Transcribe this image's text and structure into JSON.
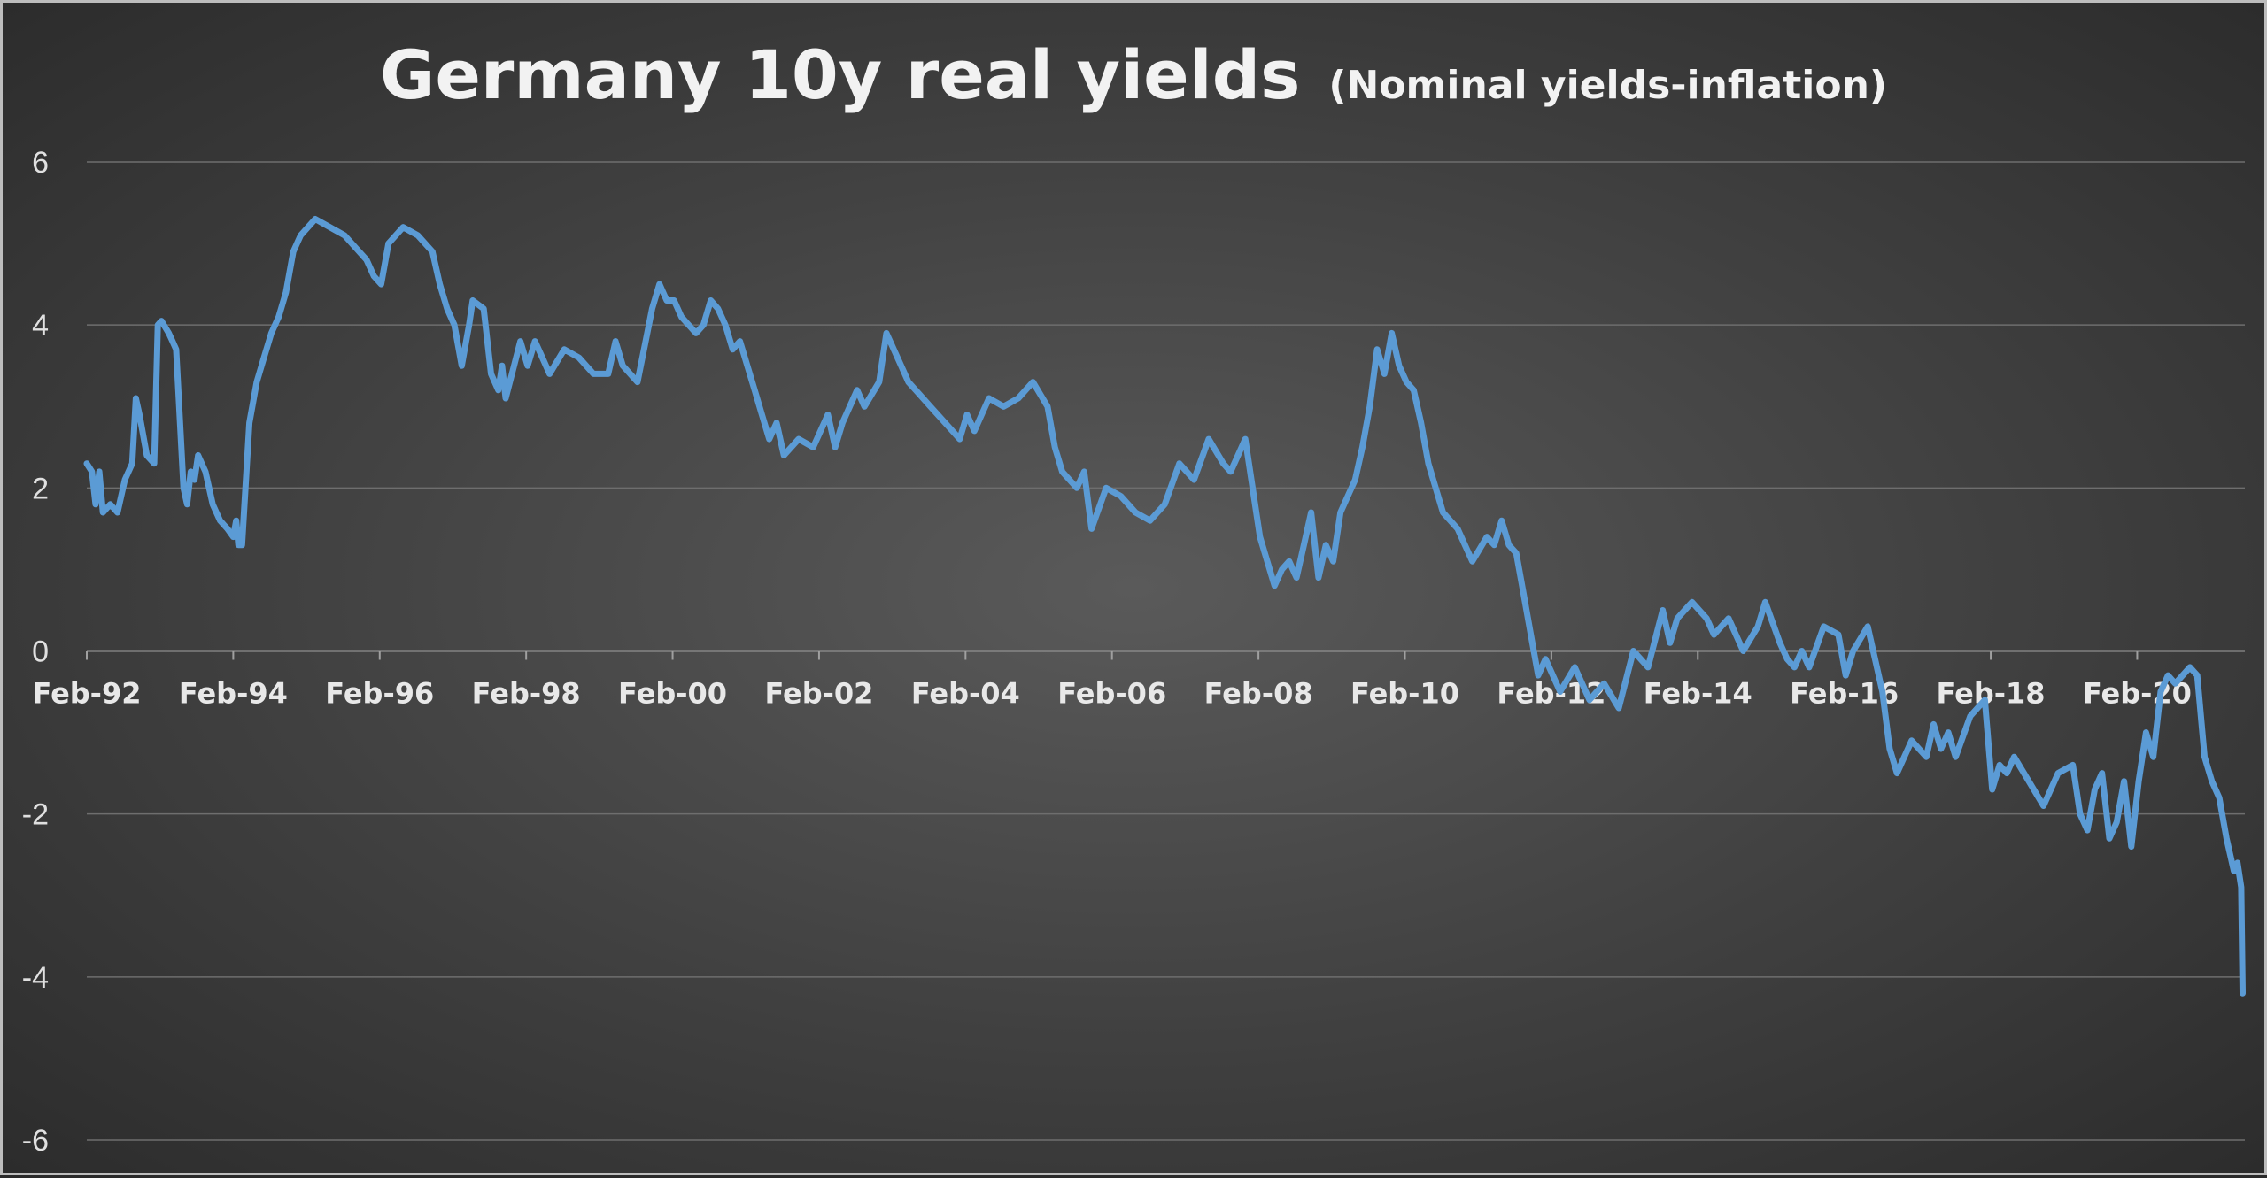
{
  "chart_data": {
    "type": "line",
    "title": "Germany 10y real yields",
    "subtitle": "(Nominal yields-inflation)",
    "xlabel": "",
    "ylabel": "",
    "xlim": [
      1992.08,
      2021.55
    ],
    "ylim": [
      -6,
      6
    ],
    "yticks": [
      6,
      4,
      2,
      0,
      -2,
      -4,
      -6
    ],
    "yticklabels": [
      "6",
      "4",
      "2",
      "0",
      "-2",
      "-4",
      "-6"
    ],
    "xticks": [
      1992.08,
      1994.08,
      1996.08,
      1998.08,
      2000.08,
      2002.08,
      2004.08,
      2006.08,
      2008.08,
      2010.08,
      2012.08,
      2014.08,
      2016.08,
      2018.08,
      2020.08
    ],
    "xticklabels": [
      "Feb-92",
      "Feb-94",
      "Feb-96",
      "Feb-98",
      "Feb-00",
      "Feb-02",
      "Feb-04",
      "Feb-06",
      "Feb-08",
      "Feb-10",
      "Feb-12",
      "Feb-14",
      "Feb-16",
      "Feb-18",
      "Feb-20"
    ],
    "grid": true,
    "legend": "none",
    "series_color": "#5b9bd5",
    "series": [
      {
        "x": [
          1992.08,
          1992.15,
          1992.2,
          1992.25,
          1992.3,
          1992.4,
          1992.5,
          1992.6,
          1992.7,
          1992.75,
          1992.8,
          1992.9,
          1993.0,
          1993.05,
          1993.1,
          1993.2,
          1993.25,
          1993.3,
          1993.4,
          1993.45,
          1993.5,
          1993.55,
          1993.6,
          1993.7,
          1993.8,
          1993.9,
          1994.0,
          1994.08,
          1994.12,
          1994.15,
          1994.2,
          1994.3,
          1994.4,
          1994.5,
          1994.6,
          1994.7,
          1994.8,
          1994.9,
          1995.0,
          1995.2,
          1995.4,
          1995.6,
          1995.8,
          1995.9,
          1996.0,
          1996.1,
          1996.2,
          1996.4,
          1996.6,
          1996.8,
          1996.9,
          1997.0,
          1997.1,
          1997.2,
          1997.3,
          1997.35,
          1997.5,
          1997.6,
          1997.7,
          1997.75,
          1997.8,
          1998.0,
          1998.1,
          1998.2,
          1998.3,
          1998.4,
          1998.6,
          1998.8,
          1999.0,
          1999.2,
          1999.3,
          1999.4,
          1999.6,
          1999.8,
          1999.9,
          2000.0,
          2000.1,
          2000.2,
          2000.3,
          2000.4,
          2000.5,
          2000.6,
          2000.7,
          2000.8,
          2000.9,
          2001.0,
          2001.2,
          2001.3,
          2001.4,
          2001.5,
          2001.6,
          2001.8,
          2002.0,
          2002.2,
          2002.3,
          2002.4,
          2002.6,
          2002.7,
          2002.9,
          2003.0,
          2003.2,
          2003.3,
          2003.4,
          2003.6,
          2003.8,
          2004.0,
          2004.1,
          2004.2,
          2004.3,
          2004.4,
          2004.6,
          2004.8,
          2004.9,
          2005.0,
          2005.2,
          2005.3,
          2005.4,
          2005.6,
          2005.7,
          2005.8,
          2006.0,
          2006.2,
          2006.4,
          2006.6,
          2006.8,
          2007.0,
          2007.2,
          2007.4,
          2007.6,
          2007.7,
          2007.8,
          2007.9,
          2008.0,
          2008.1,
          2008.3,
          2008.4,
          2008.5,
          2008.6,
          2008.7,
          2008.8,
          2008.9,
          2009.0,
          2009.1,
          2009.2,
          2009.3,
          2009.4,
          2009.5,
          2009.6,
          2009.7,
          2009.8,
          2009.9,
          2010.0,
          2010.1,
          2010.2,
          2010.3,
          2010.4,
          2010.6,
          2010.8,
          2011.0,
          2011.2,
          2011.3,
          2011.4,
          2011.5,
          2011.6,
          2011.7,
          2011.8,
          2011.9,
          2012.0,
          2012.2,
          2012.4,
          2012.6,
          2012.8,
          2013.0,
          2013.2,
          2013.4,
          2013.6,
          2013.7,
          2013.8,
          2014.0,
          2014.2,
          2014.3,
          2014.5,
          2014.7,
          2014.9,
          2015.0,
          2015.2,
          2015.3,
          2015.4,
          2015.5,
          2015.6,
          2015.8,
          2016.0,
          2016.1,
          2016.2,
          2016.4,
          2016.6,
          2016.7,
          2016.8,
          2017.0,
          2017.2,
          2017.3,
          2017.4,
          2017.5,
          2017.6,
          2017.8,
          2018.0,
          2018.1,
          2018.2,
          2018.3,
          2018.4,
          2018.6,
          2018.8,
          2019.0,
          2019.2,
          2019.3,
          2019.4,
          2019.5,
          2019.6,
          2019.7,
          2019.8,
          2019.9,
          2020.0,
          2020.1,
          2020.2,
          2020.3,
          2020.4,
          2020.5,
          2020.6,
          2020.7,
          2020.8,
          2020.9,
          2021.0,
          2021.1,
          2021.2,
          2021.3,
          2021.4,
          2021.45,
          2021.5,
          2021.52
        ],
        "y": [
          2.3,
          2.2,
          1.8,
          2.2,
          1.7,
          1.8,
          1.7,
          2.1,
          2.3,
          3.1,
          2.9,
          2.4,
          2.3,
          4.0,
          4.05,
          3.9,
          3.8,
          3.7,
          2.0,
          1.8,
          2.2,
          2.1,
          2.4,
          2.2,
          1.8,
          1.6,
          1.5,
          1.4,
          1.6,
          1.3,
          1.3,
          2.8,
          3.3,
          3.6,
          3.9,
          4.1,
          4.4,
          4.9,
          5.1,
          5.3,
          5.2,
          5.1,
          4.9,
          4.8,
          4.6,
          4.5,
          5.0,
          5.2,
          5.1,
          4.9,
          4.5,
          4.2,
          4.0,
          3.5,
          4.0,
          4.3,
          4.2,
          3.4,
          3.2,
          3.5,
          3.1,
          3.8,
          3.5,
          3.8,
          3.6,
          3.4,
          3.7,
          3.6,
          3.4,
          3.4,
          3.8,
          3.5,
          3.3,
          4.2,
          4.5,
          4.3,
          4.3,
          4.1,
          4.0,
          3.9,
          4.0,
          4.3,
          4.2,
          4.0,
          3.7,
          3.8,
          3.2,
          2.9,
          2.6,
          2.8,
          2.4,
          2.6,
          2.5,
          2.9,
          2.5,
          2.8,
          3.2,
          3.0,
          3.3,
          3.9,
          3.5,
          3.3,
          3.2,
          3.0,
          2.8,
          2.6,
          2.9,
          2.7,
          2.9,
          3.1,
          3.0,
          3.1,
          3.2,
          3.3,
          3.0,
          2.5,
          2.2,
          2.0,
          2.2,
          1.5,
          2.0,
          1.9,
          1.7,
          1.6,
          1.8,
          2.3,
          2.1,
          2.6,
          2.3,
          2.2,
          2.4,
          2.6,
          2.0,
          1.4,
          0.8,
          1.0,
          1.1,
          0.9,
          1.3,
          1.7,
          0.9,
          1.3,
          1.1,
          1.7,
          1.9,
          2.1,
          2.5,
          3.0,
          3.7,
          3.4,
          3.9,
          3.5,
          3.3,
          3.2,
          2.8,
          2.3,
          1.7,
          1.5,
          1.1,
          1.4,
          1.3,
          1.6,
          1.3,
          1.2,
          0.7,
          0.2,
          -0.3,
          -0.1,
          -0.5,
          -0.2,
          -0.6,
          -0.4,
          -0.7,
          0.0,
          -0.2,
          0.5,
          0.1,
          0.4,
          0.6,
          0.4,
          0.2,
          0.4,
          0.0,
          0.3,
          0.6,
          0.1,
          -0.1,
          -0.2,
          0.0,
          -0.2,
          0.3,
          0.2,
          -0.3,
          0.0,
          0.3,
          -0.5,
          -1.2,
          -1.5,
          -1.1,
          -1.3,
          -0.9,
          -1.2,
          -1.0,
          -1.3,
          -0.8,
          -0.6,
          -1.7,
          -1.4,
          -1.5,
          -1.3,
          -1.6,
          -1.9,
          -1.5,
          -1.4,
          -2.0,
          -2.2,
          -1.7,
          -1.5,
          -2.3,
          -2.1,
          -1.6,
          -2.4,
          -1.6,
          -1.0,
          -1.3,
          -0.5,
          -0.3,
          -0.4,
          -0.3,
          -0.2,
          -0.3,
          -1.3,
          -1.6,
          -1.8,
          -2.3,
          -2.7,
          -2.6,
          -2.9,
          -4.2
        ]
      }
    ]
  }
}
